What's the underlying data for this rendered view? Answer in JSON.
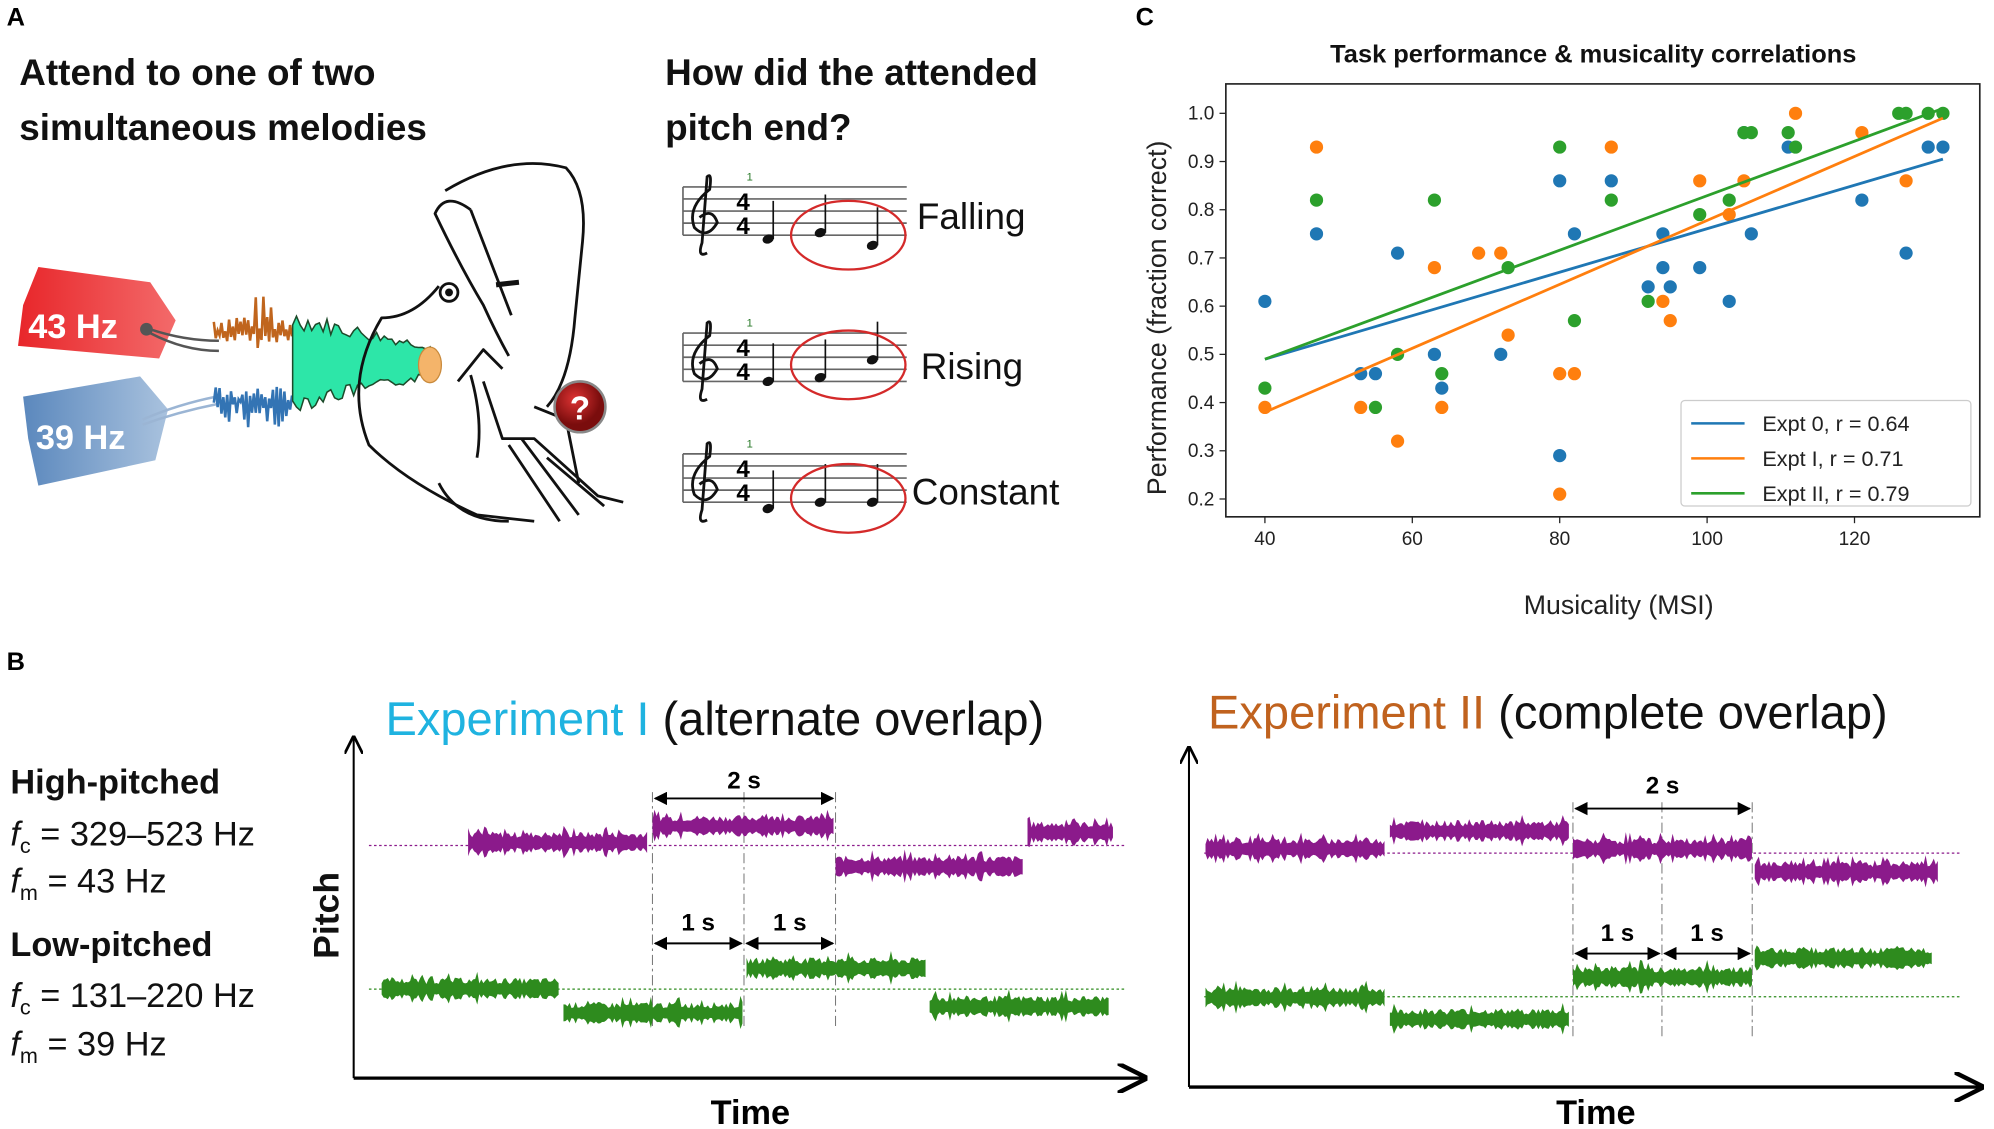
{
  "panel_a": {
    "letter": "A",
    "left_heading": [
      "Attend to one of two",
      "simultaneous melodies"
    ],
    "right_heading": [
      "How did the attended",
      "pitch end?"
    ],
    "tag_high": "43 Hz",
    "tag_low": "39 Hz",
    "question_mark": "?",
    "time_signature": "4",
    "measure_number": "1",
    "answers": [
      "Falling",
      "Rising",
      "Constant"
    ],
    "colors": {
      "tag_high": "#e8262a",
      "tag_low": "#5b88bd",
      "wave_high": "#c0651d",
      "wave_low": "#3374b4",
      "wave_mix": "#2de6a8",
      "circle": "#d42a2a"
    }
  },
  "panel_b": {
    "letter": "B",
    "high": {
      "title": "High-pitched",
      "fc_sym": "f",
      "fc_sub": "c",
      "fc_val": " = 329–523 Hz",
      "fm_sym": "f",
      "fm_sub": "m",
      "fm_val": " = 43 Hz"
    },
    "low": {
      "title": "Low-pitched",
      "fc_sym": "f",
      "fc_sub": "c",
      "fc_val": " = 131–220 Hz",
      "fm_sym": "f",
      "fm_sub": "m",
      "fm_val": " = 39 Hz"
    },
    "y_label": "Pitch",
    "x_label": "Time",
    "exp1": {
      "name": "Experiment I",
      "desc": " (alternate overlap)",
      "color": "#1fb3e0"
    },
    "exp2": {
      "name": "Experiment II",
      "desc": " (complete overlap)",
      "color": "#c0621e"
    },
    "dur_long": "2 s",
    "dur_short": "1 s",
    "colors": {
      "high": "#8b1a8b",
      "low": "#2e8b1e"
    }
  },
  "panel_c": {
    "letter": "C"
  },
  "chart_data": {
    "type": "scatter",
    "title": "Task performance & musicality correlations",
    "xlabel": "Musicality (MSI)",
    "ylabel": "Performance (fraction correct)",
    "xlim": [
      34.7,
      137
    ],
    "ylim": [
      0.163,
      1.061
    ],
    "xticks": [
      40,
      60,
      80,
      100,
      120
    ],
    "yticks": [
      0.2,
      0.3,
      0.4,
      0.5,
      0.6,
      0.7,
      0.8,
      0.9,
      1.0
    ],
    "ytick_labels": [
      "0.2",
      "0.3",
      "0.4",
      "0.5",
      "0.6",
      "0.7",
      "0.8",
      "0.9",
      "1.0"
    ],
    "grid": false,
    "legend_position": "bottom-right",
    "series": [
      {
        "name": "Expt 0",
        "r_label": ", r = 0.64",
        "color": "#1f77b4",
        "fit": [
          [
            40,
            0.49
          ],
          [
            132,
            0.905
          ]
        ],
        "points": [
          [
            40,
            0.61
          ],
          [
            47,
            0.75
          ],
          [
            53,
            0.46
          ],
          [
            55,
            0.46
          ],
          [
            58,
            0.71
          ],
          [
            63,
            0.5
          ],
          [
            64,
            0.43
          ],
          [
            72,
            0.5
          ],
          [
            80,
            0.86
          ],
          [
            80,
            0.29
          ],
          [
            82,
            0.75
          ],
          [
            87,
            0.86
          ],
          [
            92,
            0.64
          ],
          [
            94,
            0.75
          ],
          [
            94,
            0.68
          ],
          [
            95,
            0.64
          ],
          [
            99,
            0.68
          ],
          [
            103,
            0.61
          ],
          [
            105,
            0.96
          ],
          [
            106,
            0.75
          ],
          [
            111,
            0.93
          ],
          [
            121,
            0.82
          ],
          [
            127,
            0.71
          ],
          [
            130,
            0.93
          ],
          [
            132,
            0.93
          ]
        ]
      },
      {
        "name": "Expt I",
        "r_label": ", r = 0.71",
        "color": "#ff7f0e",
        "fit": [
          [
            40,
            0.38
          ],
          [
            132,
            0.99
          ]
        ],
        "points": [
          [
            40,
            0.39
          ],
          [
            47,
            0.93
          ],
          [
            53,
            0.39
          ],
          [
            58,
            0.32
          ],
          [
            63,
            0.68
          ],
          [
            64,
            0.39
          ],
          [
            69,
            0.71
          ],
          [
            72,
            0.71
          ],
          [
            73,
            0.54
          ],
          [
            80,
            0.46
          ],
          [
            82,
            0.46
          ],
          [
            80,
            0.21
          ],
          [
            87,
            0.93
          ],
          [
            94,
            0.61
          ],
          [
            95,
            0.57
          ],
          [
            99,
            0.86
          ],
          [
            103,
            0.79
          ],
          [
            105,
            0.86
          ],
          [
            112,
            1.0
          ],
          [
            121,
            0.96
          ],
          [
            127,
            0.86
          ]
        ]
      },
      {
        "name": "Expt II",
        "r_label": ", r = 0.79",
        "color": "#2ca02c",
        "fit": [
          [
            40,
            0.49
          ],
          [
            132,
            1.01
          ]
        ],
        "points": [
          [
            40,
            0.43
          ],
          [
            47,
            0.82
          ],
          [
            55,
            0.39
          ],
          [
            58,
            0.5
          ],
          [
            63,
            0.82
          ],
          [
            64,
            0.46
          ],
          [
            73,
            0.68
          ],
          [
            80,
            0.93
          ],
          [
            82,
            0.57
          ],
          [
            87,
            0.82
          ],
          [
            92,
            0.61
          ],
          [
            99,
            0.79
          ],
          [
            103,
            0.82
          ],
          [
            105,
            0.96
          ],
          [
            106,
            0.96
          ],
          [
            111,
            0.96
          ],
          [
            112,
            0.93
          ],
          [
            126,
            1.0
          ],
          [
            127,
            1.0
          ],
          [
            130,
            1.0
          ],
          [
            132,
            1.0
          ]
        ]
      }
    ]
  }
}
